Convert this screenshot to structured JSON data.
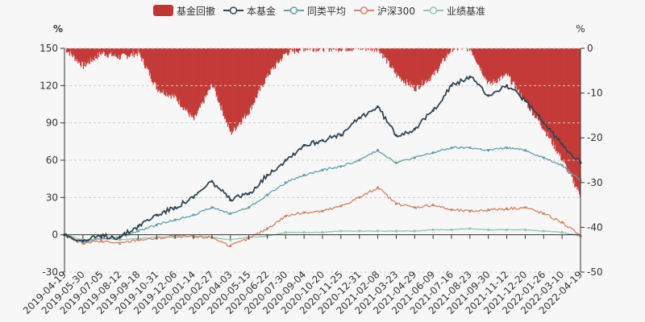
{
  "colors": {
    "drawdown": "#c23531",
    "fund": "#2f4554",
    "peer": "#61a0a8",
    "hs300": "#d48265",
    "benchmark": "#91c7ae",
    "axis": "#333333",
    "grid": "#cccccc"
  },
  "legend": [
    {
      "key": "drawdown",
      "label": "基金回撤",
      "type": "bar"
    },
    {
      "key": "fund",
      "label": "本基金",
      "type": "line"
    },
    {
      "key": "peer",
      "label": "同类平均",
      "type": "line"
    },
    {
      "key": "hs300",
      "label": "沪深300",
      "type": "line"
    },
    {
      "key": "benchmark",
      "label": "业绩基准",
      "type": "line"
    }
  ],
  "chart_data": {
    "type": "line",
    "y_left": {
      "unit": "%",
      "min": -30,
      "max": 150,
      "ticks": [
        -30,
        0,
        30,
        60,
        90,
        120,
        150
      ]
    },
    "y_right": {
      "unit": "%",
      "min": -50,
      "max": 0,
      "ticks": [
        -50,
        -40,
        -30,
        -20,
        -10,
        0
      ]
    },
    "x_tick_labels": [
      "2019-04-19",
      "2019-05-30",
      "2019-07-05",
      "2019-08-12",
      "2019-09-18",
      "2019-10-31",
      "2019-12-06",
      "2020-01-14",
      "2020-02-27",
      "2020-04-03",
      "2020-05-15",
      "2020-06-22",
      "2020-07-30",
      "2020-09-04",
      "2020-10-20",
      "2020-11-25",
      "2020-12-31",
      "2021-02-08",
      "2021-03-23",
      "2021-04-29",
      "2021-06-09",
      "2021-07-16",
      "2021-08-23",
      "2021-09-30",
      "2021-11-12",
      "2021-12-20",
      "2022-01-26",
      "2022-03-10",
      "2022-04-19"
    ],
    "x": [
      "2019-04-19",
      "2019-05-30",
      "2019-07-05",
      "2019-08-12",
      "2019-09-18",
      "2019-10-31",
      "2019-12-06",
      "2020-01-14",
      "2020-02-27",
      "2020-04-03",
      "2020-05-15",
      "2020-06-22",
      "2020-07-30",
      "2020-09-04",
      "2020-10-20",
      "2020-11-25",
      "2020-12-31",
      "2021-02-08",
      "2021-03-23",
      "2021-04-29",
      "2021-06-09",
      "2021-07-16",
      "2021-08-23",
      "2021-09-30",
      "2021-11-12",
      "2021-12-20",
      "2022-01-26",
      "2022-03-10",
      "2022-04-19"
    ],
    "series": [
      {
        "key": "fund",
        "name": "本基金",
        "axis": "left",
        "values": [
          0,
          -5,
          -1,
          -2,
          7,
          16,
          22,
          30,
          43,
          28,
          33,
          48,
          60,
          72,
          76,
          80,
          94,
          103,
          80,
          85,
          100,
          120,
          127,
          112,
          120,
          108,
          90,
          73,
          58
        ]
      },
      {
        "key": "peer",
        "name": "同类平均",
        "axis": "left",
        "values": [
          0,
          -6,
          -3,
          -2,
          3,
          8,
          12,
          16,
          22,
          17,
          22,
          32,
          42,
          48,
          52,
          55,
          60,
          68,
          58,
          62,
          66,
          70,
          70,
          68,
          70,
          68,
          62,
          56,
          44
        ]
      },
      {
        "key": "hs300",
        "name": "沪深300",
        "axis": "left",
        "values": [
          0,
          -7,
          -5,
          -7,
          -4,
          -3,
          -1,
          -2,
          -2,
          -9,
          -3,
          5,
          15,
          18,
          19,
          23,
          30,
          38,
          25,
          22,
          24,
          20,
          19,
          20,
          21,
          22,
          17,
          10,
          -1
        ]
      },
      {
        "key": "benchmark",
        "name": "业绩基准",
        "axis": "left",
        "values": [
          0,
          -4,
          -3,
          -4,
          -3,
          -2,
          -2,
          -1,
          -2,
          -4,
          -2,
          -1,
          2,
          2,
          2,
          3,
          3,
          3,
          3,
          3,
          4,
          4,
          5,
          4,
          4,
          4,
          3,
          2,
          -1
        ]
      },
      {
        "key": "drawdown",
        "name": "基金回撤",
        "axis": "right",
        "values": [
          0,
          -4,
          -1,
          -2,
          -1,
          -9,
          -11,
          -16,
          -8,
          -19,
          -14,
          -6,
          -1,
          0,
          0,
          0,
          0,
          0,
          -6,
          -9,
          -6,
          0,
          0,
          -8,
          -6,
          -12,
          -18,
          -25,
          -33
        ]
      }
    ]
  }
}
